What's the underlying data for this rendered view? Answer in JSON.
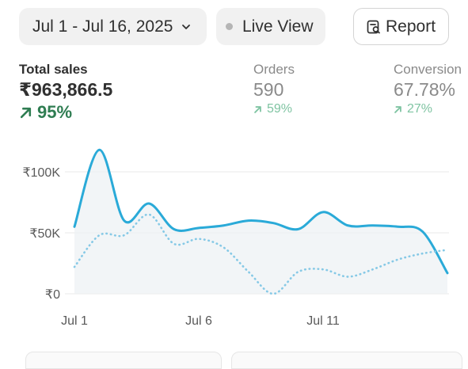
{
  "toolbar": {
    "date_range": "Jul 1 - Jul 16, 2025",
    "live_view": "Live View",
    "report": "Report"
  },
  "metrics": [
    {
      "label": "Total sales",
      "value": "₹963,866.5",
      "delta": "95%"
    },
    {
      "label": "Orders",
      "value": "590",
      "delta": "59%"
    },
    {
      "label": "Conversion",
      "value": "67.78%",
      "delta": "27%"
    }
  ],
  "colors": {
    "current_series": "#2aaad8",
    "previous_series": "#86c9e6",
    "positive_delta": "#2f7d52",
    "muted_positive_delta": "#7fc4a2"
  },
  "chart_data": {
    "type": "line",
    "title": "",
    "xlabel": "",
    "ylabel": "",
    "x_tick_labels": [
      "Jul 1",
      "Jul 6",
      "Jul 11"
    ],
    "y_tick_labels": [
      "₹0",
      "₹50K",
      "₹100K"
    ],
    "y_ticks": [
      0,
      50000,
      100000
    ],
    "ylim": [
      0,
      120000
    ],
    "grid": true,
    "x": [
      "Jul 1",
      "Jul 2",
      "Jul 3",
      "Jul 4",
      "Jul 5",
      "Jul 6",
      "Jul 7",
      "Jul 8",
      "Jul 9",
      "Jul 10",
      "Jul 11",
      "Jul 12",
      "Jul 13",
      "Jul 14",
      "Jul 15",
      "Jul 16"
    ],
    "series": [
      {
        "name": "",
        "style": "solid",
        "values": [
          55000,
          118000,
          60000,
          74000,
          53000,
          54000,
          56000,
          60000,
          58000,
          53000,
          67000,
          56000,
          56000,
          55000,
          51000,
          17000
        ]
      },
      {
        "name": "",
        "style": "dotted",
        "values": [
          22000,
          48000,
          48000,
          65000,
          41000,
          45000,
          38000,
          18000,
          0,
          18000,
          20000,
          14000,
          20000,
          28000,
          33000,
          36000
        ]
      }
    ]
  }
}
